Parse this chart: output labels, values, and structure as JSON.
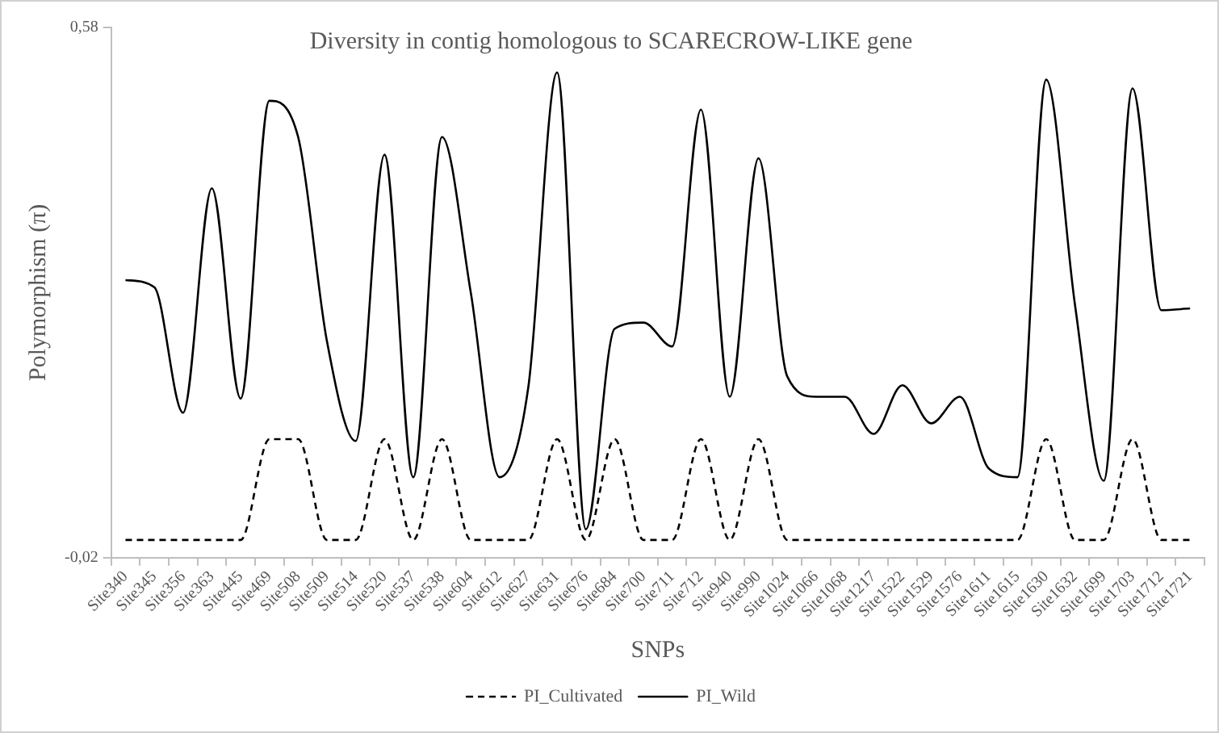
{
  "chart_data": {
    "type": "line",
    "title": "Diversity in contig homologous to SCARECROW-LIKE gene",
    "xlabel": "SNPs",
    "ylabel": "Polymorphism (π)",
    "categories": [
      "Site340",
      "Site345",
      "Site356",
      "Site363",
      "Site445",
      "Site469",
      "Site508",
      "Site509",
      "Site514",
      "Site520",
      "Site537",
      "Site538",
      "Site604",
      "Site612",
      "Site627",
      "Site631",
      "Site676",
      "Site684",
      "Site700",
      "Site711",
      "Site712",
      "Site940",
      "Site990",
      "Site1024",
      "Site1066",
      "Site1068",
      "Site1217",
      "Site1522",
      "Site1529",
      "Site1576",
      "Site1611",
      "Site1615",
      "Site1630",
      "Site1632",
      "Site1699",
      "Site1703",
      "Site1712",
      "Site1721"
    ],
    "series": [
      {
        "name": "PI_Cultivated",
        "color": "#000000",
        "line_style": "dashed",
        "values": [
          0,
          0,
          0,
          0,
          0,
          0.114,
          0.114,
          0,
          0,
          0.114,
          0,
          0.114,
          0,
          0,
          0,
          0.114,
          0,
          0.114,
          0,
          0,
          0.114,
          0,
          0.114,
          0,
          0,
          0,
          0,
          0,
          0,
          0,
          0,
          0,
          0.114,
          0,
          0,
          0.114,
          0,
          0
        ]
      },
      {
        "name": "PI_Wild",
        "color": "#000000",
        "line_style": "solid",
        "values": [
          0.294,
          0.286,
          0.144,
          0.398,
          0.16,
          0.497,
          0.456,
          0.225,
          0.112,
          0.436,
          0.071,
          0.456,
          0.28,
          0.071,
          0.173,
          0.529,
          0.012,
          0.239,
          0.246,
          0.219,
          0.487,
          0.162,
          0.432,
          0.185,
          0.162,
          0.162,
          0.12,
          0.175,
          0.132,
          0.162,
          0.081,
          0.071,
          0.521,
          0.266,
          0.067,
          0.511,
          0.26,
          0.262
        ]
      }
    ],
    "ylim": [
      -0.02,
      0.58
    ],
    "yticks": [
      {
        "value": -0.02,
        "label": "-0,02"
      },
      {
        "value": 0.58,
        "label": "0,58"
      }
    ],
    "grid": false,
    "legend": "bottom",
    "marker": "none"
  }
}
